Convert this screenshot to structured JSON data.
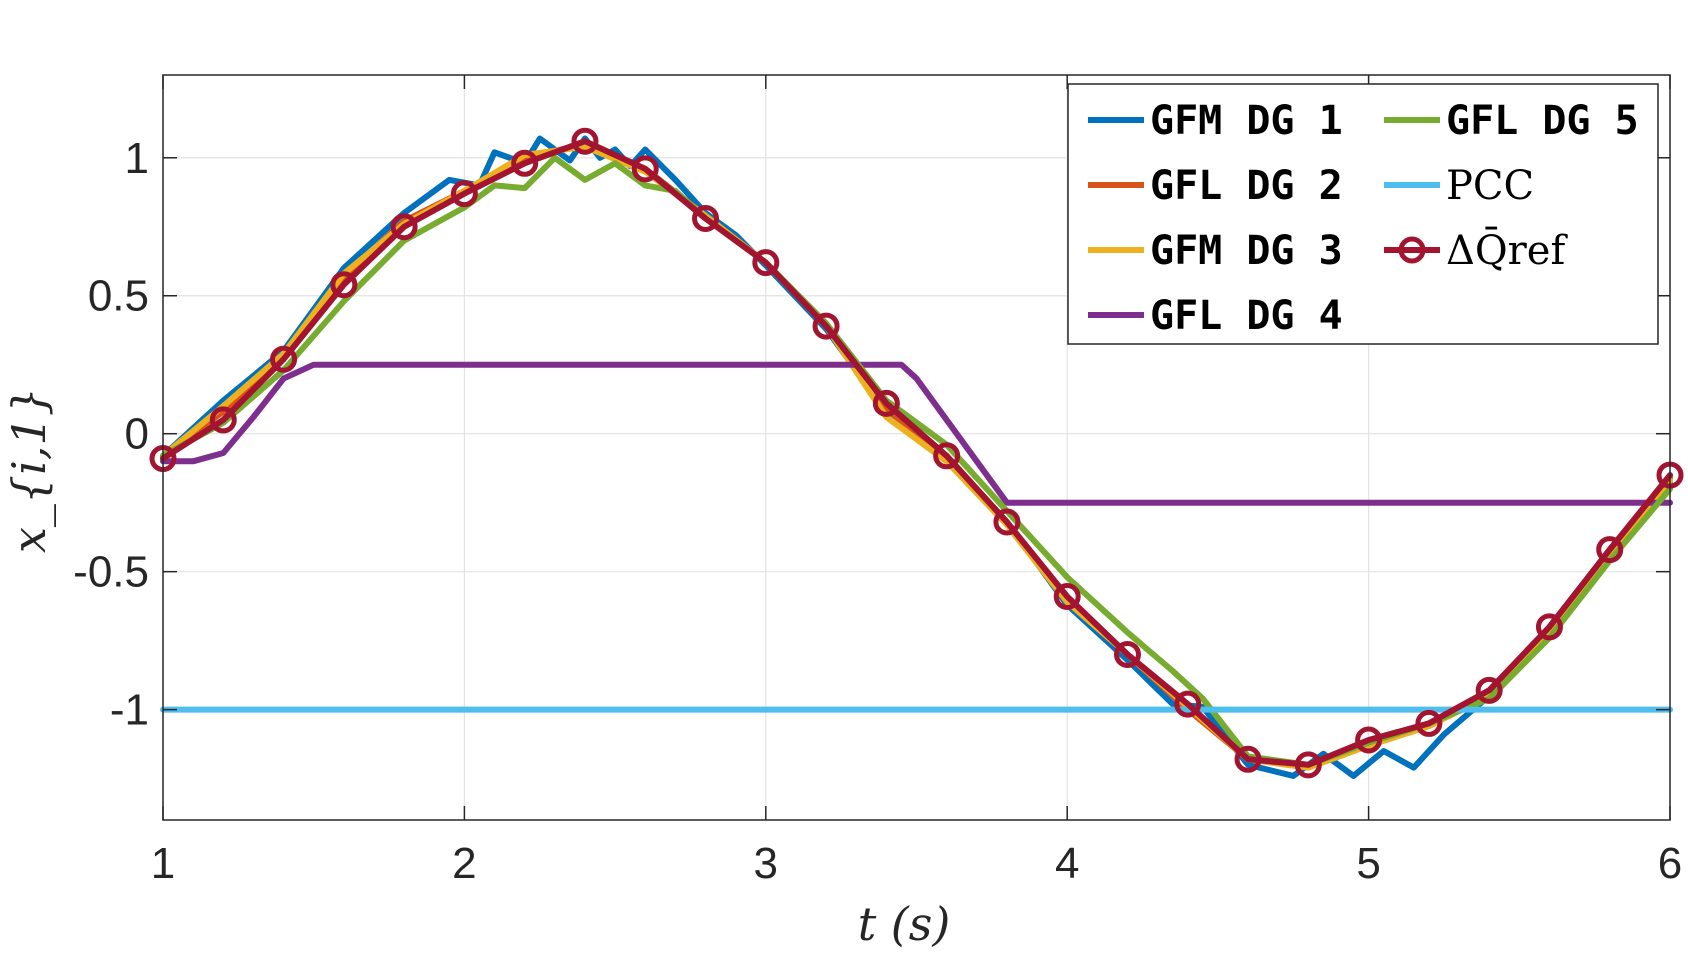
{
  "chart_data": {
    "type": "line",
    "xlabel": "t (s)",
    "ylabel": "x_{i,1}",
    "xlim": [
      1,
      6
    ],
    "ylim": [
      -1.4,
      1.3
    ],
    "xticks": [
      1,
      2,
      3,
      4,
      5,
      6
    ],
    "xtick_labels": [
      "1",
      "2",
      "3",
      "4",
      "5",
      "6"
    ],
    "yticks": [
      1,
      0.5,
      0,
      -0.5,
      -1
    ],
    "ytick_labels": [
      "1",
      "0.5",
      "0",
      "-0.5",
      "-1"
    ],
    "grid": true,
    "legend_position": "top-right",
    "legend_columns": 2,
    "series": [
      {
        "name": "GFM DG 1",
        "color": "#0072BD",
        "x": [
          1.0,
          1.2,
          1.4,
          1.6,
          1.8,
          1.95,
          2.05,
          2.1,
          2.2,
          2.25,
          2.35,
          2.4,
          2.45,
          2.5,
          2.55,
          2.6,
          2.7,
          2.8,
          2.9,
          3.0,
          3.2,
          3.4,
          3.6,
          3.8,
          4.0,
          4.2,
          4.35,
          4.45,
          4.6,
          4.75,
          4.85,
          4.95,
          5.05,
          5.15,
          5.25,
          5.4,
          5.6,
          5.8,
          6.0
        ],
        "y": [
          -0.08,
          0.12,
          0.3,
          0.6,
          0.8,
          0.92,
          0.9,
          1.02,
          0.98,
          1.07,
          0.99,
          1.07,
          1.0,
          1.03,
          0.97,
          1.03,
          0.92,
          0.8,
          0.72,
          0.61,
          0.38,
          0.08,
          -0.1,
          -0.32,
          -0.62,
          -0.82,
          -0.98,
          -0.99,
          -1.2,
          -1.24,
          -1.16,
          -1.24,
          -1.15,
          -1.21,
          -1.09,
          -0.95,
          -0.72,
          -0.43,
          -0.18
        ]
      },
      {
        "name": "GFL DG 2",
        "color": "#D95319",
        "x": [
          1.0,
          1.2,
          1.4,
          1.6,
          1.8,
          2.0,
          2.2,
          2.4,
          2.6,
          2.8,
          3.0,
          3.2,
          3.4,
          3.6,
          3.8,
          4.0,
          4.2,
          4.4,
          4.6,
          4.8,
          5.0,
          5.2,
          5.4,
          5.6,
          5.8,
          6.0
        ],
        "y": [
          -0.08,
          0.08,
          0.28,
          0.57,
          0.77,
          0.88,
          1.0,
          1.05,
          0.96,
          0.79,
          0.62,
          0.39,
          0.09,
          -0.08,
          -0.32,
          -0.6,
          -0.8,
          -1.0,
          -1.18,
          -1.21,
          -1.13,
          -1.06,
          -0.94,
          -0.71,
          -0.42,
          -0.16
        ]
      },
      {
        "name": "GFM DG 3",
        "color": "#EDB120",
        "x": [
          1.0,
          1.2,
          1.4,
          1.6,
          1.8,
          2.0,
          2.2,
          2.4,
          2.6,
          2.8,
          3.0,
          3.2,
          3.4,
          3.6,
          3.8,
          4.0,
          4.2,
          4.4,
          4.6,
          4.8,
          5.0,
          5.2,
          5.4,
          5.6,
          5.8,
          6.0
        ],
        "y": [
          -0.08,
          0.1,
          0.29,
          0.58,
          0.76,
          0.88,
          1.01,
          1.04,
          0.95,
          0.79,
          0.62,
          0.39,
          0.06,
          -0.1,
          -0.33,
          -0.61,
          -0.8,
          -0.99,
          -1.18,
          -1.21,
          -1.13,
          -1.06,
          -0.95,
          -0.72,
          -0.43,
          -0.17
        ]
      },
      {
        "name": "GFL DG 4",
        "color": "#7E2F8E",
        "x": [
          1.0,
          1.1,
          1.2,
          1.3,
          1.4,
          1.5,
          2.0,
          2.5,
          3.0,
          3.45,
          3.5,
          3.8,
          4.0,
          5.0,
          6.0
        ],
        "y": [
          -0.1,
          -0.1,
          -0.07,
          0.06,
          0.2,
          0.25,
          0.25,
          0.25,
          0.25,
          0.25,
          0.2,
          -0.25,
          -0.25,
          -0.25,
          -0.25
        ]
      },
      {
        "name": "GFL DG 5",
        "color": "#77AC30",
        "x": [
          1.0,
          1.2,
          1.4,
          1.6,
          1.8,
          2.0,
          2.1,
          2.2,
          2.3,
          2.4,
          2.5,
          2.6,
          2.7,
          2.8,
          3.0,
          3.2,
          3.4,
          3.6,
          3.8,
          4.0,
          4.2,
          4.35,
          4.45,
          4.6,
          4.8,
          5.0,
          5.2,
          5.4,
          5.6,
          5.8,
          6.0
        ],
        "y": [
          -0.08,
          0.04,
          0.23,
          0.48,
          0.7,
          0.82,
          0.9,
          0.89,
          1.0,
          0.92,
          0.98,
          0.9,
          0.88,
          0.78,
          0.62,
          0.4,
          0.12,
          -0.04,
          -0.28,
          -0.52,
          -0.72,
          -0.86,
          -0.96,
          -1.17,
          -1.2,
          -1.12,
          -1.05,
          -0.96,
          -0.74,
          -0.46,
          -0.2
        ]
      },
      {
        "name": "PCC",
        "color": "#4DBEEE",
        "x": [
          1.0,
          6.0
        ],
        "y": [
          -1.0,
          -1.0
        ]
      },
      {
        "name": "ΔQ̄ref",
        "color": "#A2142F",
        "marker": "circle",
        "x": [
          1.0,
          1.2,
          1.4,
          1.6,
          1.8,
          2.0,
          2.2,
          2.4,
          2.6,
          2.8,
          3.0,
          3.2,
          3.4,
          3.6,
          3.8,
          4.0,
          4.2,
          4.4,
          4.6,
          4.8,
          5.0,
          5.2,
          5.4,
          5.6,
          5.8,
          6.0
        ],
        "y": [
          -0.09,
          0.05,
          0.27,
          0.54,
          0.75,
          0.87,
          0.98,
          1.06,
          0.96,
          0.78,
          0.62,
          0.39,
          0.11,
          -0.08,
          -0.32,
          -0.59,
          -0.8,
          -0.98,
          -1.18,
          -1.2,
          -1.11,
          -1.05,
          -0.93,
          -0.7,
          -0.42,
          -0.15
        ]
      }
    ]
  }
}
